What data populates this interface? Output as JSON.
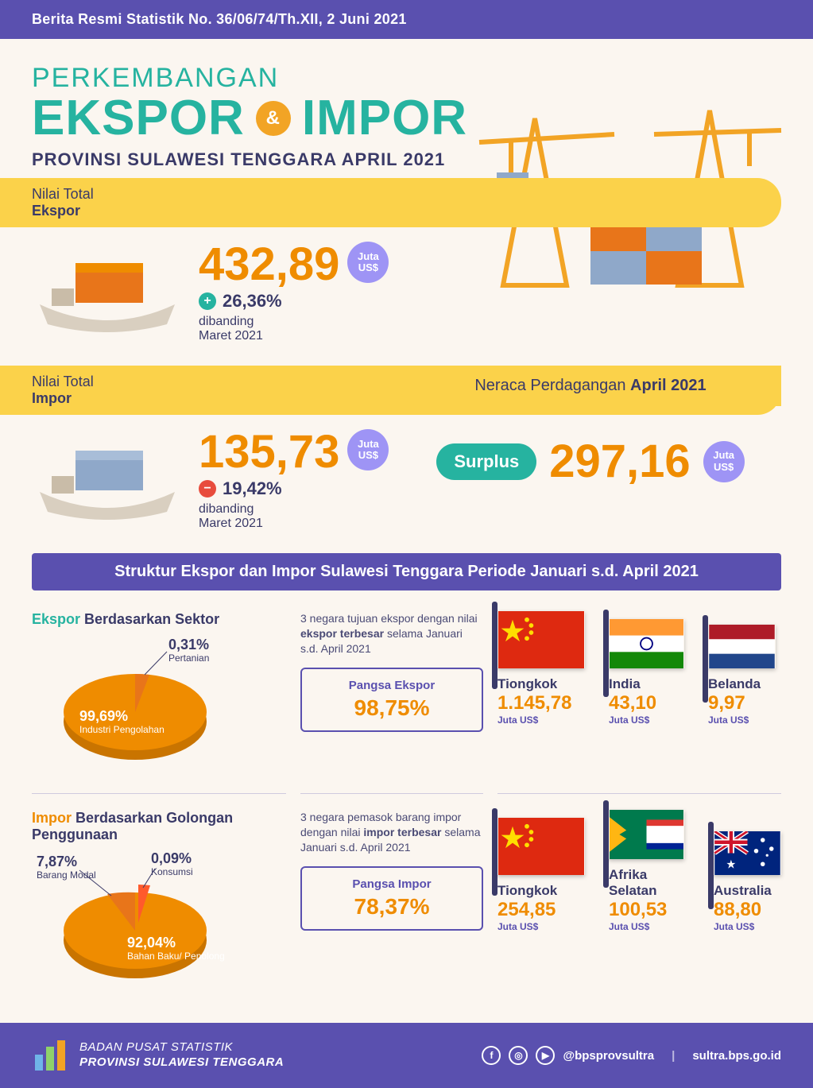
{
  "header": {
    "bar_text": "Berita Resmi Statistik No. 36/06/74/Th.XII, 2 Juni 2021",
    "title_l1": "PERKEMBANGAN",
    "title_word1": "EKSPOR",
    "title_amp": "&",
    "title_word2": "IMPOR",
    "title_l3": "PROVINSI SULAWESI TENGGARA APRIL 2021"
  },
  "colors": {
    "purple": "#5a50af",
    "teal": "#26b3a0",
    "yellow": "#fbd24a",
    "orange": "#ef8c00",
    "orange_deep": "#e8751a",
    "red": "#e84c3d",
    "bubble": "#9e94f5",
    "bg": "#fbf6f0"
  },
  "ekspor": {
    "label_pre": "Nilai Total",
    "label_b": "Ekspor",
    "value": "432,89",
    "unit": "Juta US$",
    "delta_dir": "up",
    "delta_pct": "26,36%",
    "delta_txt1": "dibanding",
    "delta_txt2": "Maret 2021"
  },
  "impor": {
    "label_pre": "Nilai Total",
    "label_b": "Impor",
    "value": "135,73",
    "unit": "Juta US$",
    "delta_dir": "down",
    "delta_pct": "19,42%",
    "delta_txt1": "dibanding",
    "delta_txt2": "Maret 2021"
  },
  "neraca": {
    "bar_pre": "Neraca Perdagangan ",
    "bar_b": "April 2021",
    "badge": "Surplus",
    "value": "297,16",
    "unit": "Juta US$"
  },
  "section_bar": "Struktur Ekspor dan Impor Sulawesi Tenggara Periode Januari s.d. April 2021",
  "pie_ekspor": {
    "title_hl": "Ekspor",
    "title_rest": " Berdasarkan Sektor",
    "slices": [
      {
        "label": "Industri Pengolahan",
        "pct": "99,69%",
        "value": 99.69,
        "color": "#ef8c00"
      },
      {
        "label": "Pertanian",
        "pct": "0,31%",
        "value": 0.31,
        "color": "#e8751a"
      }
    ]
  },
  "pie_impor": {
    "title_hl": "Impor",
    "title_rest": " Berdasarkan Golongan Penggunaan",
    "slices": [
      {
        "label": "Bahan Baku/ Penolong",
        "pct": "92,04%",
        "value": 92.04,
        "color": "#ef8c00"
      },
      {
        "label": "Barang Modal",
        "pct": "7,87%",
        "value": 7.87,
        "color": "#e8751a"
      },
      {
        "label": "Konsumsi",
        "pct": "0,09%",
        "value": 0.09,
        "color": "#ff5a2c"
      }
    ]
  },
  "ekspor_desc": {
    "text_pre": "3 negara tujuan ekspor dengan nilai ",
    "text_b": "ekspor terbesar",
    "text_post": " selama Januari s.d. April 2021",
    "pangsa_label": "Pangsa Ekspor",
    "pangsa_value": "98,75%"
  },
  "impor_desc": {
    "text_pre": "3 negara pemasok barang impor dengan nilai ",
    "text_b": "impor terbesar",
    "text_post": " selama Januari s.d. April 2021",
    "pangsa_label": "Pangsa Impor",
    "pangsa_value": "78,37%"
  },
  "ekspor_countries": [
    {
      "name": "Tiongkok",
      "value": "1.145,78",
      "unit": "Juta US$",
      "flag": "china"
    },
    {
      "name": "India",
      "value": "43,10",
      "unit": "Juta US$",
      "flag": "india"
    },
    {
      "name": "Belanda",
      "value": "9,97",
      "unit": "Juta US$",
      "flag": "netherlands"
    }
  ],
  "impor_countries": [
    {
      "name": "Tiongkok",
      "value": "254,85",
      "unit": "Juta US$",
      "flag": "china"
    },
    {
      "name": "Afrika Selatan",
      "value": "100,53",
      "unit": "Juta US$",
      "flag": "southafrica"
    },
    {
      "name": "Australia",
      "value": "88,80",
      "unit": "Juta US$",
      "flag": "australia"
    }
  ],
  "footer": {
    "org_l1": "BADAN PUSAT STATISTIK",
    "org_l2": "PROVINSI SULAWESI TENGGARA",
    "handle": "@bpsprovsultra",
    "site": "sultra.bps.go.id"
  }
}
